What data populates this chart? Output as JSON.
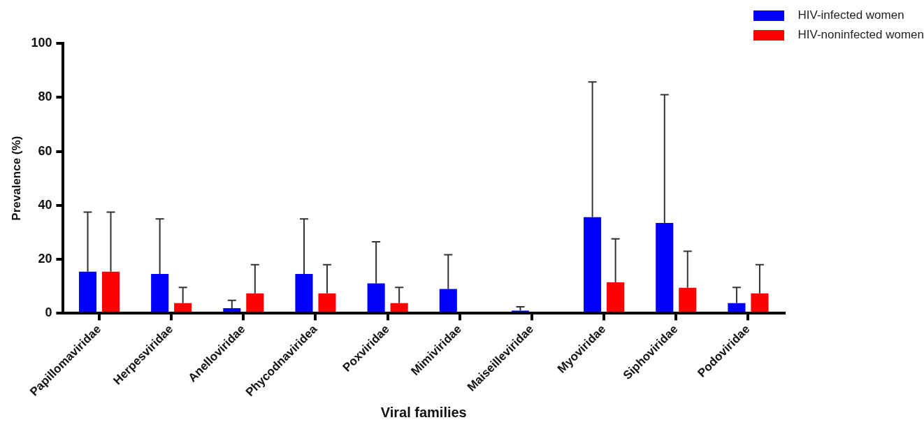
{
  "chart_data": {
    "type": "bar",
    "xlabel": "Viral families",
    "ylabel": "Prevalence (%)",
    "categories": [
      "Papillomaviridae",
      "Herpesviridae",
      "Anelloviridae",
      "Phycodnaviridea",
      "Poxviridae",
      "Mimiviridae",
      "Maiseilleviridae",
      "Myoviridae",
      "Siphoviridae",
      "Podoviridae"
    ],
    "series": [
      {
        "name": "HIV-infected women",
        "color": "#0000ff",
        "values": [
          15.4,
          14.6,
          1.9,
          14.6,
          11.1,
          9,
          1,
          35.6,
          33.5,
          3.8
        ],
        "errors": [
          [
            15.4,
            37.5
          ],
          [
            14.6,
            35
          ],
          [
            1.9,
            4.8
          ],
          [
            14.6,
            35
          ],
          [
            11.1,
            26.5
          ],
          [
            9,
            21.7
          ],
          [
            1,
            2.4
          ],
          [
            35.6,
            85.7
          ],
          [
            33.5,
            81
          ],
          [
            3.8,
            9.6
          ]
        ]
      },
      {
        "name": "HIV-noninfected women",
        "color": "#ff0000",
        "values": [
          15.4,
          3.8,
          7.4,
          7.4,
          3.8,
          0,
          0,
          11.5,
          9.5,
          7.4
        ],
        "errors": [
          [
            15.4,
            37.5
          ],
          [
            3.8,
            9.6
          ],
          [
            7.4,
            18
          ],
          [
            7.4,
            18
          ],
          [
            3.8,
            9.6
          ],
          null,
          null,
          [
            11.5,
            27.6
          ],
          [
            9.5,
            23
          ],
          [
            7.4,
            18
          ]
        ]
      }
    ],
    "ylim": [
      0,
      100
    ],
    "yticks": [
      0,
      20,
      40,
      60,
      80,
      100
    ],
    "grid": false,
    "legend": "top right"
  }
}
